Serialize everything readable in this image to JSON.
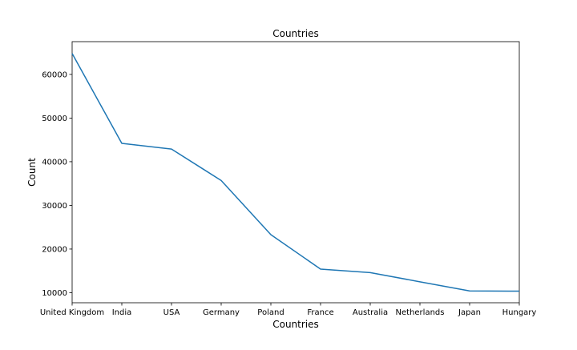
{
  "chart_data": {
    "type": "line",
    "title": "Countries",
    "xlabel": "Countries",
    "ylabel": "Count",
    "categories": [
      "United Kingdom",
      "India",
      "USA",
      "Germany",
      "Poland",
      "France",
      "Australia",
      "Netherlands",
      "Japan",
      "Hungary"
    ],
    "series": [
      {
        "values": [
          64800,
          44200,
          42900,
          35700,
          23300,
          15400,
          14600,
          12500,
          10400,
          10350
        ],
        "color": "#1f77b4"
      }
    ],
    "ylim": [
      7700,
      67500
    ],
    "yticks": [
      10000,
      20000,
      30000,
      40000,
      50000,
      60000
    ],
    "grid": false,
    "legend": "none"
  }
}
